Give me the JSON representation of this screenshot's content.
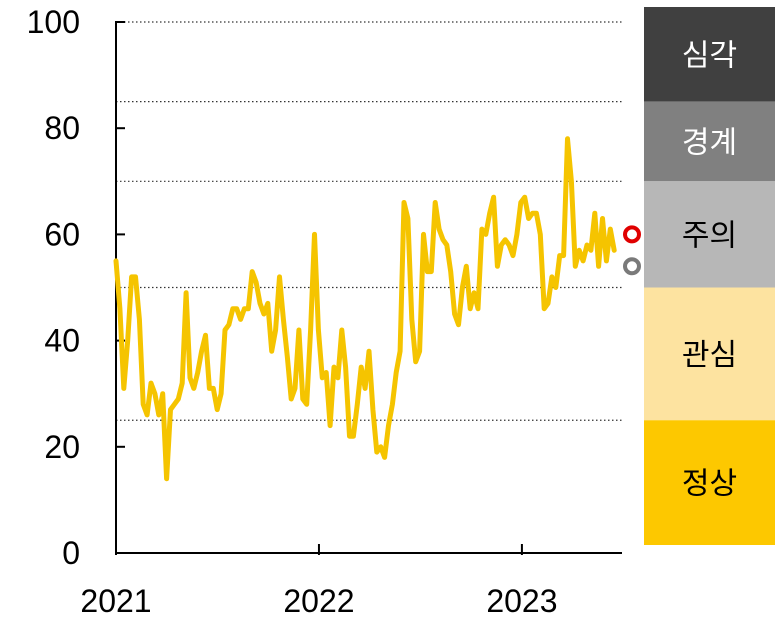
{
  "chart_data": {
    "type": "line",
    "title": "",
    "xlabel": "",
    "ylabel": "",
    "ylim": [
      0,
      100
    ],
    "xlim": [
      "2021-01-01",
      "2023-06-30"
    ],
    "y_ticks": [
      "0",
      "20",
      "40",
      "60",
      "80",
      "100"
    ],
    "x_ticks": [
      {
        "label": "2021",
        "x": "2021-01-01"
      },
      {
        "label": "2022",
        "x": "2022-01-01"
      },
      {
        "label": "2023",
        "x": "2023-01-01"
      }
    ],
    "grid": "horizontal dotted lines at 25, 50, 70, 85, 100",
    "gridlines": [
      25,
      50,
      70,
      85,
      100
    ],
    "series": [
      {
        "color": "#f5c400",
        "points": [
          [
            "2021-01-01",
            55
          ],
          [
            "2021-01-08",
            46
          ],
          [
            "2021-01-15",
            31
          ],
          [
            "2021-01-22",
            40
          ],
          [
            "2021-01-29",
            52
          ],
          [
            "2021-02-05",
            52
          ],
          [
            "2021-02-12",
            44
          ],
          [
            "2021-02-19",
            28
          ],
          [
            "2021-02-26",
            26
          ],
          [
            "2021-03-05",
            32
          ],
          [
            "2021-03-12",
            30
          ],
          [
            "2021-03-19",
            26
          ],
          [
            "2021-03-26",
            30
          ],
          [
            "2021-04-02",
            14
          ],
          [
            "2021-04-09",
            27
          ],
          [
            "2021-04-16",
            28
          ],
          [
            "2021-04-23",
            29
          ],
          [
            "2021-04-30",
            32
          ],
          [
            "2021-05-07",
            49
          ],
          [
            "2021-05-14",
            33
          ],
          [
            "2021-05-21",
            31
          ],
          [
            "2021-05-28",
            34
          ],
          [
            "2021-06-04",
            38
          ],
          [
            "2021-06-11",
            41
          ],
          [
            "2021-06-18",
            31
          ],
          [
            "2021-06-25",
            31
          ],
          [
            "2021-07-02",
            27
          ],
          [
            "2021-07-09",
            30
          ],
          [
            "2021-07-16",
            42
          ],
          [
            "2021-07-23",
            43
          ],
          [
            "2021-07-30",
            46
          ],
          [
            "2021-08-06",
            46
          ],
          [
            "2021-08-13",
            44
          ],
          [
            "2021-08-20",
            46
          ],
          [
            "2021-08-27",
            46
          ],
          [
            "2021-09-03",
            53
          ],
          [
            "2021-09-10",
            51
          ],
          [
            "2021-09-17",
            47
          ],
          [
            "2021-09-24",
            45
          ],
          [
            "2021-10-01",
            47
          ],
          [
            "2021-10-08",
            38
          ],
          [
            "2021-10-15",
            42
          ],
          [
            "2021-10-22",
            52
          ],
          [
            "2021-10-29",
            44
          ],
          [
            "2021-11-05",
            37
          ],
          [
            "2021-11-12",
            29
          ],
          [
            "2021-11-19",
            31
          ],
          [
            "2021-11-26",
            42
          ],
          [
            "2021-12-03",
            29
          ],
          [
            "2021-12-10",
            28
          ],
          [
            "2021-12-17",
            42
          ],
          [
            "2021-12-24",
            60
          ],
          [
            "2021-12-31",
            42
          ],
          [
            "2022-01-07",
            33
          ],
          [
            "2022-01-14",
            34
          ],
          [
            "2022-01-21",
            24
          ],
          [
            "2022-01-28",
            35
          ],
          [
            "2022-02-04",
            33
          ],
          [
            "2022-02-11",
            42
          ],
          [
            "2022-02-18",
            35
          ],
          [
            "2022-02-25",
            22
          ],
          [
            "2022-03-04",
            22
          ],
          [
            "2022-03-11",
            28
          ],
          [
            "2022-03-18",
            35
          ],
          [
            "2022-03-25",
            31
          ],
          [
            "2022-04-01",
            38
          ],
          [
            "2022-04-08",
            27
          ],
          [
            "2022-04-15",
            19
          ],
          [
            "2022-04-22",
            20
          ],
          [
            "2022-04-29",
            18
          ],
          [
            "2022-05-06",
            24
          ],
          [
            "2022-05-13",
            28
          ],
          [
            "2022-05-20",
            34
          ],
          [
            "2022-05-27",
            38
          ],
          [
            "2022-06-03",
            66
          ],
          [
            "2022-06-10",
            63
          ],
          [
            "2022-06-17",
            44
          ],
          [
            "2022-06-24",
            36
          ],
          [
            "2022-07-01",
            38
          ],
          [
            "2022-07-08",
            60
          ],
          [
            "2022-07-15",
            53
          ],
          [
            "2022-07-22",
            53
          ],
          [
            "2022-07-29",
            66
          ],
          [
            "2022-08-05",
            61
          ],
          [
            "2022-08-12",
            59
          ],
          [
            "2022-08-19",
            58
          ],
          [
            "2022-08-26",
            53
          ],
          [
            "2022-09-02",
            45
          ],
          [
            "2022-09-09",
            43
          ],
          [
            "2022-09-16",
            50
          ],
          [
            "2022-09-23",
            54
          ],
          [
            "2022-09-30",
            46
          ],
          [
            "2022-10-07",
            49
          ],
          [
            "2022-10-14",
            46
          ],
          [
            "2022-10-21",
            61
          ],
          [
            "2022-10-28",
            60
          ],
          [
            "2022-11-04",
            64
          ],
          [
            "2022-11-11",
            67
          ],
          [
            "2022-11-18",
            54
          ],
          [
            "2022-11-25",
            58
          ],
          [
            "2022-12-02",
            59
          ],
          [
            "2022-12-09",
            58
          ],
          [
            "2022-12-16",
            56
          ],
          [
            "2022-12-23",
            60
          ],
          [
            "2022-12-30",
            66
          ],
          [
            "2023-01-06",
            67
          ],
          [
            "2023-01-13",
            63
          ],
          [
            "2023-01-20",
            64
          ],
          [
            "2023-01-27",
            64
          ],
          [
            "2023-02-03",
            60
          ],
          [
            "2023-02-10",
            46
          ],
          [
            "2023-02-17",
            47
          ],
          [
            "2023-02-24",
            52
          ],
          [
            "2023-03-03",
            50
          ],
          [
            "2023-03-10",
            56
          ],
          [
            "2023-03-17",
            56
          ],
          [
            "2023-03-24",
            78
          ],
          [
            "2023-03-31",
            70
          ],
          [
            "2023-04-07",
            54
          ],
          [
            "2023-04-14",
            57
          ],
          [
            "2023-04-21",
            55
          ],
          [
            "2023-04-28",
            58
          ],
          [
            "2023-05-05",
            57
          ],
          [
            "2023-05-12",
            64
          ],
          [
            "2023-05-19",
            54
          ],
          [
            "2023-05-26",
            63
          ],
          [
            "2023-06-02",
            55
          ],
          [
            "2023-06-09",
            61
          ],
          [
            "2023-06-16",
            57
          ]
        ]
      }
    ],
    "markers": [
      {
        "x": "2023-06-30",
        "y": 60,
        "color": "#e00000"
      },
      {
        "x": "2023-06-30",
        "y": 54,
        "color": "#7a7a7a"
      }
    ],
    "bands": [
      {
        "label": "심각",
        "from": 85,
        "to": 100,
        "color": "#404040",
        "text_color": "#ffffff"
      },
      {
        "label": "경계",
        "from": 70,
        "to": 85,
        "color": "#808080",
        "text_color": "#ffffff"
      },
      {
        "label": "주의",
        "from": 50,
        "to": 70,
        "color": "#b7b7b7",
        "text_color": "#000000"
      },
      {
        "label": "관심",
        "from": 25,
        "to": 50,
        "color": "#fde3a0",
        "text_color": "#000000"
      },
      {
        "label": "정상",
        "from": 0,
        "to": 25,
        "color": "#fdc800",
        "text_color": "#000000"
      }
    ],
    "axis_color": "#000000"
  }
}
